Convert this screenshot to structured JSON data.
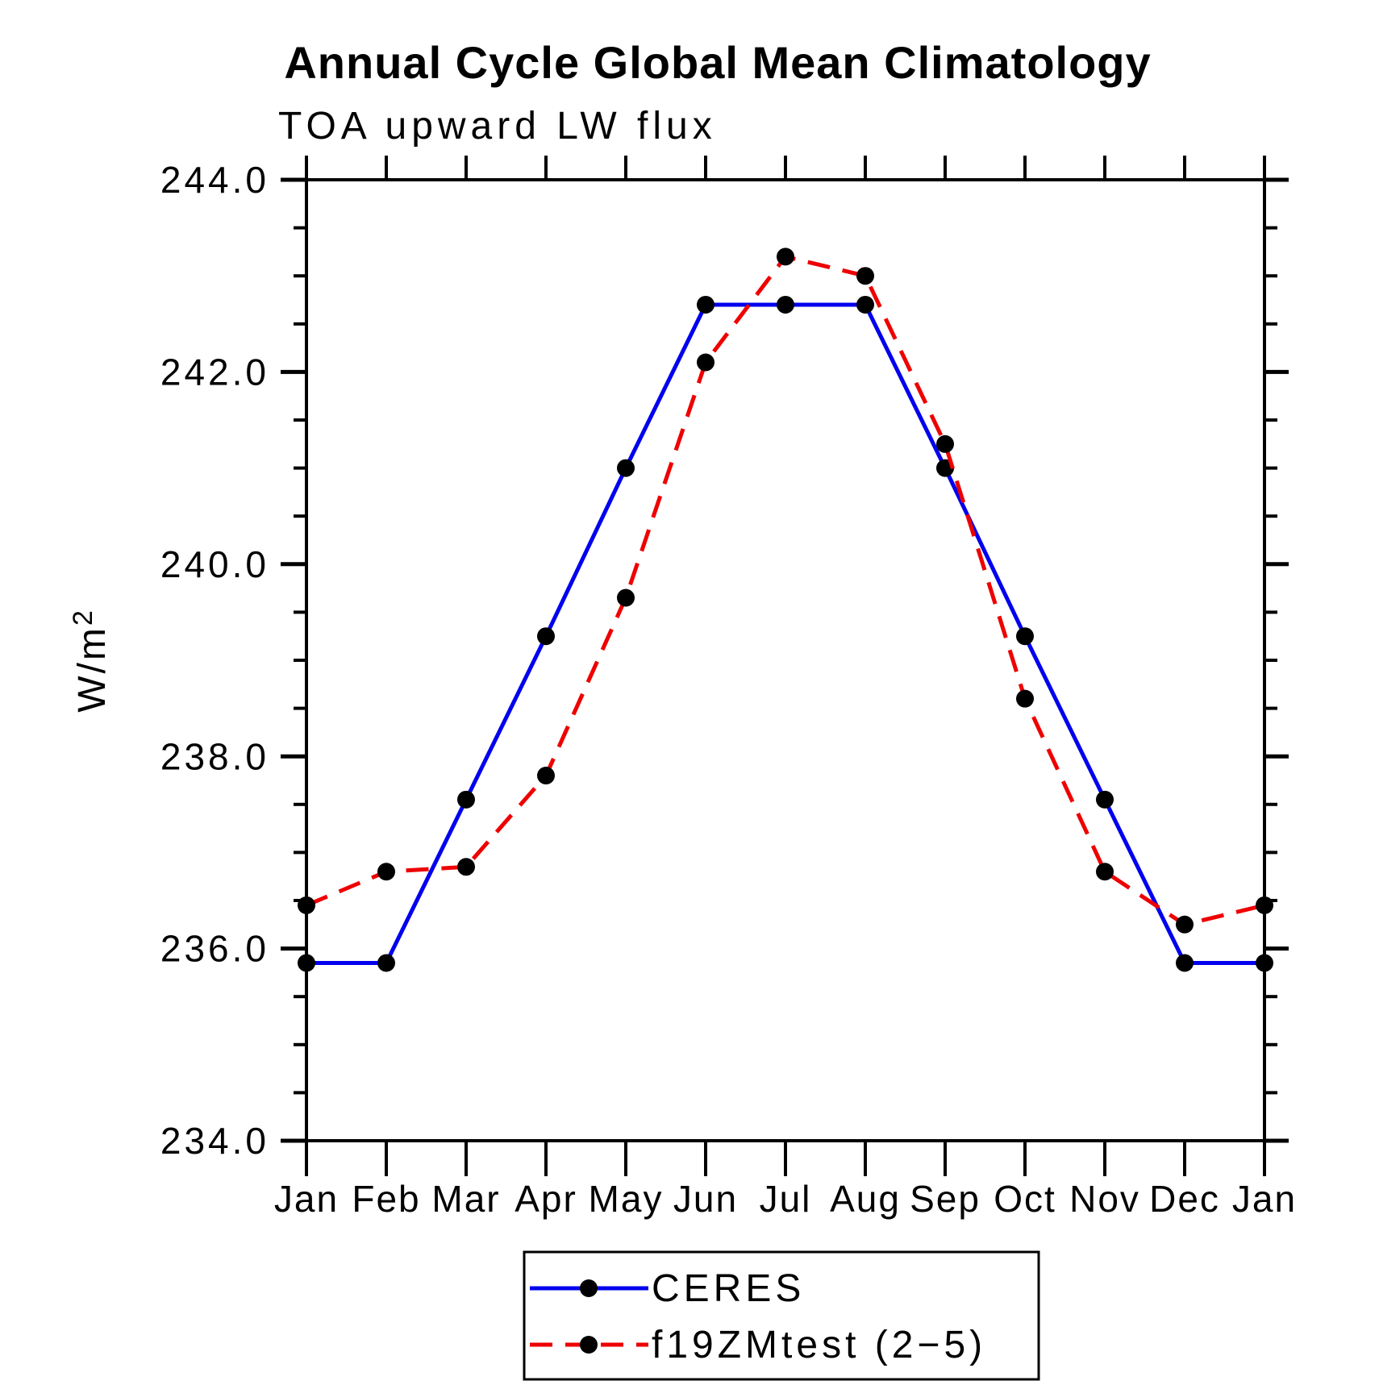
{
  "title": "Annual Cycle Global Mean Climatology",
  "subtitle": "TOA upward LW flux",
  "colors": {
    "ceres_line": "#0000ee",
    "f19zmtest_line": "#ee0000",
    "marker": "#000000",
    "axis": "#000000",
    "background": "#ffffff"
  },
  "legend": {
    "entries": [
      "CERES",
      "f19ZMtest (2−5)"
    ]
  },
  "chart_data": {
    "type": "line",
    "title": "Annual Cycle Global Mean Climatology",
    "subtitle": "TOA upward LW flux",
    "xlabel": "",
    "ylabel": "W/m²",
    "categories": [
      "Jan",
      "Feb",
      "Mar",
      "Apr",
      "May",
      "Jun",
      "Jul",
      "Aug",
      "Sep",
      "Oct",
      "Nov",
      "Dec",
      "Jan"
    ],
    "ylim": [
      234.0,
      244.0
    ],
    "ytick_major": 2.0,
    "ytick_minor": 0.5,
    "ytick_labels": [
      "234.0",
      "236.0",
      "238.0",
      "240.0",
      "242.0",
      "244.0"
    ],
    "grid": false,
    "legend_position": "bottom-center",
    "series": [
      {
        "name": "CERES",
        "color": "#0000ee",
        "line_style": "solid",
        "marker": "filled-circle",
        "marker_color": "#000000",
        "values": [
          235.85,
          235.85,
          237.55,
          239.25,
          241.0,
          242.7,
          242.7,
          242.7,
          241.0,
          239.25,
          237.55,
          235.85,
          235.85
        ]
      },
      {
        "name": "f19ZMtest (2−5)",
        "color": "#ee0000",
        "line_style": "dashed",
        "marker": "filled-circle",
        "marker_color": "#000000",
        "values": [
          236.45,
          236.8,
          236.85,
          237.8,
          239.65,
          242.1,
          243.2,
          243.0,
          241.25,
          238.6,
          236.8,
          236.25,
          236.45
        ]
      }
    ]
  }
}
